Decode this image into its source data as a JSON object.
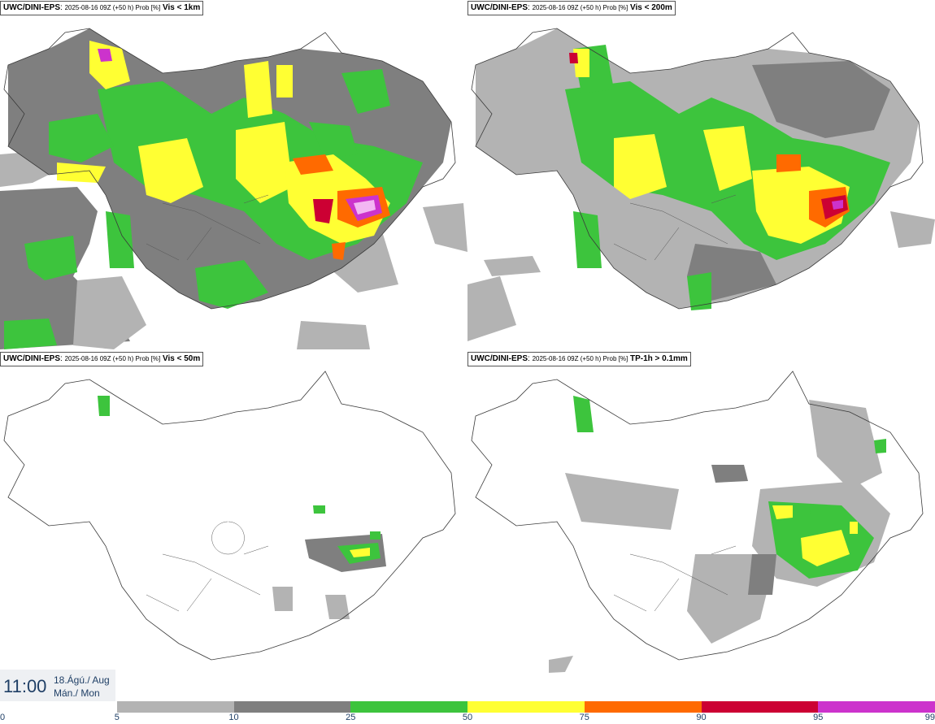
{
  "panels": [
    {
      "model": "UWC/DINI-EPS",
      "run": "2025-08-16 09Z (+50 h) Prob [%]",
      "variable": "Vis < 1km"
    },
    {
      "model": "UWC/DINI-EPS",
      "run": "2025-08-16 09Z (+50 h) Prob [%]",
      "variable": "Vis < 200m"
    },
    {
      "model": "UWC/DINI-EPS",
      "run": "2025-08-16 09Z (+50 h) Prob [%]",
      "variable": "Vis < 50m"
    },
    {
      "model": "UWC/DINI-EPS",
      "run": "2025-08-16 09Z (+50 h) Prob [%]",
      "variable": "TP-1h > 0.1mm"
    }
  ],
  "time": {
    "clock": "11:00",
    "date_line1": "18.Ágú./ Aug",
    "date_line2": "Mán./ Mon"
  },
  "legend": {
    "ticks": [
      "0",
      "5",
      "10",
      "25",
      "50",
      "75",
      "90",
      "95",
      "99"
    ],
    "colors": [
      "#ffffff",
      "#b3b3b3",
      "#7f7f7f",
      "#3dc43d",
      "#ffff33",
      "#ff6a00",
      "#cc0033",
      "#cc33cc",
      "#f3b7f3"
    ]
  },
  "palette": {
    "coast": "#3a3a3a",
    "p5": "#b3b3b3",
    "p10": "#7f7f7f",
    "p25": "#3dc43d",
    "p50": "#ffff33",
    "p75": "#ff6a00",
    "p90": "#cc0033",
    "p95": "#cc33cc",
    "p99": "#f3b7f3"
  }
}
